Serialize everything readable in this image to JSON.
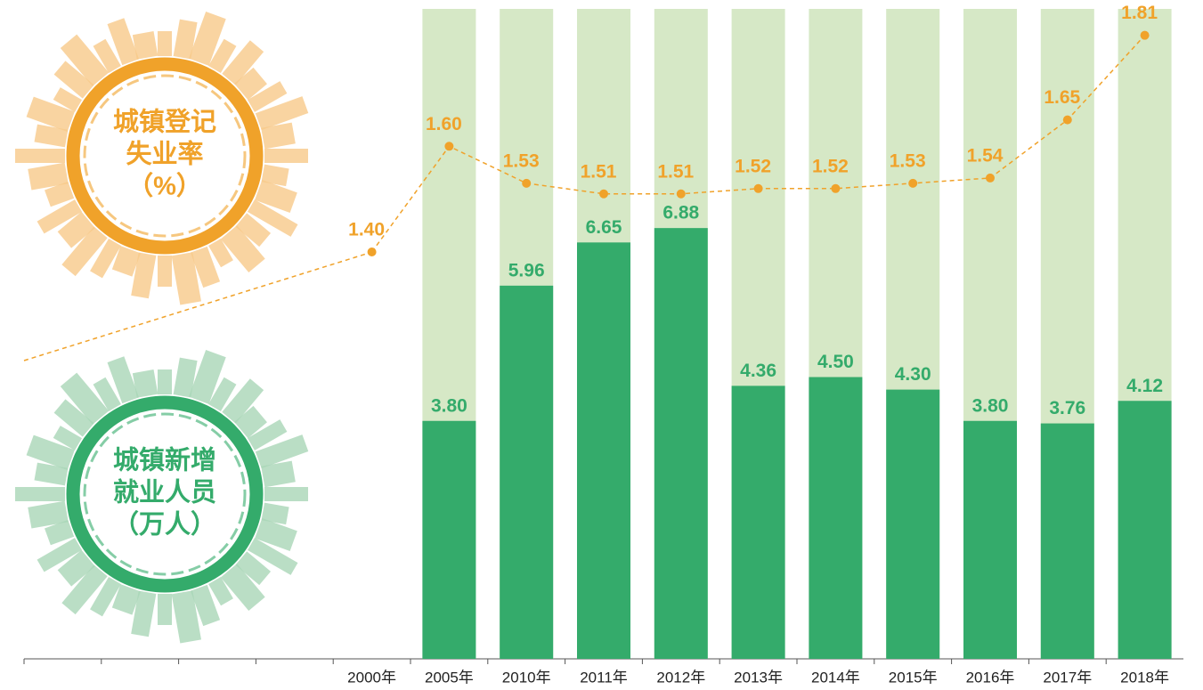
{
  "chart_data": {
    "type": "bar",
    "categories": [
      null,
      null,
      null,
      null,
      "2000年",
      "2005年",
      "2010年",
      "2011年",
      "2012年",
      "2013年",
      "2014年",
      "2015年",
      "2016年",
      "2017年",
      "2018年"
    ],
    "ylim": [
      0,
      10.38
    ],
    "y2lim": [
      0.63,
      1.86
    ],
    "series": [
      {
        "name_lines": [
          "城镇新增",
          "就业人员",
          "（万人）"
        ],
        "type": "bar",
        "color": "#34ab6b",
        "background_color": "#d6e8c6",
        "values": [
          null,
          null,
          null,
          null,
          null,
          3.8,
          5.96,
          6.65,
          6.88,
          4.36,
          4.5,
          4.3,
          3.8,
          3.76,
          4.12
        ],
        "value_labels": [
          null,
          null,
          null,
          null,
          null,
          "3.80",
          "5.96",
          "6.65",
          "6.88",
          "4.36",
          "4.50",
          "4.30",
          "3.80",
          "3.76",
          "4.12"
        ]
      },
      {
        "name_lines": [
          "城镇登记",
          "失业率",
          "（%）"
        ],
        "type": "line",
        "axis": "y2",
        "color": "#f0a22a",
        "values": [
          null,
          null,
          null,
          null,
          1.4,
          1.6,
          1.53,
          1.51,
          1.51,
          1.52,
          1.52,
          1.53,
          1.54,
          1.65,
          1.81
        ],
        "value_labels": [
          null,
          null,
          null,
          null,
          "1.40",
          "1.60",
          "1.53",
          "1.51",
          "1.51",
          "1.52",
          "1.52",
          "1.53",
          "1.54",
          "1.65",
          "1.81"
        ]
      }
    ]
  }
}
